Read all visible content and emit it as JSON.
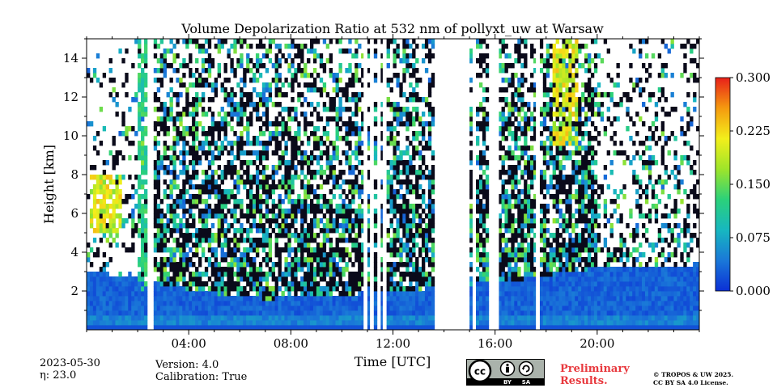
{
  "chart_data": {
    "type": "heatmap",
    "title": "Volume Depolarization Ratio at 532 nm of pollyxt_uw at Warsaw",
    "xlabel": "Time [UTC]",
    "ylabel": "Height [km]",
    "xlim_hours": [
      0,
      24
    ],
    "ylim_km": [
      0,
      15
    ],
    "x_ticks": [
      {
        "value": 4,
        "label": "04:00"
      },
      {
        "value": 8,
        "label": "08:00"
      },
      {
        "value": 12,
        "label": "12:00"
      },
      {
        "value": 16,
        "label": "16:00"
      },
      {
        "value": 20,
        "label": "20:00"
      }
    ],
    "y_ticks": [
      {
        "value": 2,
        "label": "2"
      },
      {
        "value": 4,
        "label": "4"
      },
      {
        "value": 6,
        "label": "6"
      },
      {
        "value": 8,
        "label": "8"
      },
      {
        "value": 10,
        "label": "10"
      },
      {
        "value": 12,
        "label": "12"
      },
      {
        "value": 14,
        "label": "14"
      }
    ],
    "colorbar": {
      "min": 0.0,
      "max": 0.3,
      "ticks": [
        {
          "value": 0.0,
          "label": "0.000"
        },
        {
          "value": 0.075,
          "label": "0.075"
        },
        {
          "value": 0.15,
          "label": "0.150"
        },
        {
          "value": 0.225,
          "label": "0.225"
        },
        {
          "value": 0.3,
          "label": "0.300"
        }
      ],
      "colormap": [
        "#0b2fd6",
        "#1a78d8",
        "#17b7c0",
        "#2bd17a",
        "#9ee52a",
        "#f3ef1b",
        "#f59a0f",
        "#e8201a"
      ]
    },
    "data_gaps_hours": [
      [
        2.43,
        2.6
      ],
      [
        10.85,
        10.95
      ],
      [
        11.1,
        11.22
      ],
      [
        11.42,
        11.52
      ],
      [
        11.6,
        11.7
      ],
      [
        13.65,
        14.95
      ],
      [
        15.12,
        15.22
      ],
      [
        15.8,
        16.15
      ],
      [
        17.6,
        17.75
      ]
    ],
    "boundary_layer_top_km": [
      [
        0,
        3.0
      ],
      [
        2,
        2.7
      ],
      [
        3,
        2.3
      ],
      [
        5,
        1.9
      ],
      [
        7,
        1.6
      ],
      [
        10,
        1.8
      ],
      [
        14,
        2.2
      ],
      [
        17,
        2.6
      ],
      [
        20,
        3.2
      ],
      [
        22,
        3.2
      ],
      [
        24,
        3.4
      ]
    ],
    "clouds": [
      {
        "t_start": 2.0,
        "t_end": 2.4,
        "h_start": 2.0,
        "h_end": 15.0,
        "value": 0.12
      },
      {
        "t_start": 18.3,
        "t_end": 19.3,
        "h_start": 9.5,
        "h_end": 15.0,
        "value": 0.2
      },
      {
        "t_start": 0.1,
        "t_end": 1.4,
        "h_start": 5.0,
        "h_end": 8.0,
        "value": 0.2
      }
    ]
  },
  "footer": {
    "date": "2023-05-30",
    "eta": "η: 23.0",
    "version": "Version: 4.0",
    "calibration": "Calibration: True",
    "preliminary_line1": "Preliminary",
    "preliminary_line2": "Results.",
    "copyright_line1": "© TROPOS & UW 2025.",
    "copyright_line2": "CC BY SA 4.0 License.",
    "badge_by": "BY",
    "badge_sa": "SA"
  }
}
